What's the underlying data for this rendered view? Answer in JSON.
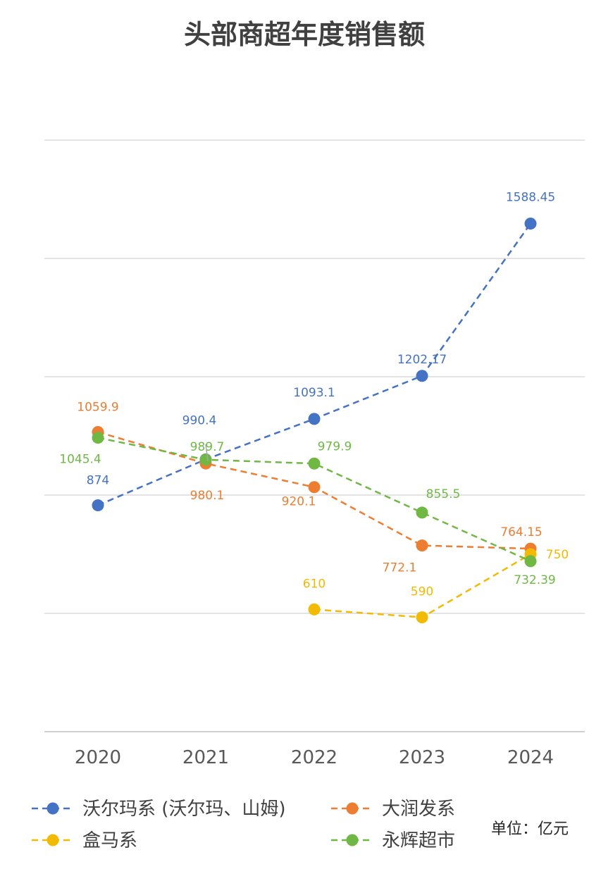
{
  "chart_data": {
    "type": "line",
    "title": "头部商超年度销售额",
    "categories": [
      "2020",
      "2021",
      "2022",
      "2023",
      "2024"
    ],
    "unit_label": "单位：亿元",
    "ylim": [
      300,
      1800
    ],
    "grid": true,
    "legend_position": "bottom",
    "series": [
      {
        "name": "沃尔玛系 (沃尔玛、山姆)",
        "color": "#4472C4",
        "values": [
          874,
          990.4,
          1093.1,
          1202.17,
          1588.45
        ],
        "labels": [
          "874",
          "990.4",
          "1093.1",
          "1202.17",
          "1588.45"
        ]
      },
      {
        "name": "大润发系",
        "color": "#ED7D31",
        "values": [
          1059.9,
          980.1,
          920.1,
          772.1,
          764.15
        ],
        "labels": [
          "1059.9",
          "980.1",
          "920.1",
          "772.1",
          "764.15"
        ]
      },
      {
        "name": "盒马系",
        "color": "#F2BA02",
        "values": [
          null,
          null,
          610,
          590,
          750
        ],
        "labels": [
          "",
          "",
          "610",
          "590",
          "750"
        ]
      },
      {
        "name": "永辉超市",
        "color": "#70B844",
        "values": [
          1045.4,
          989.7,
          979.9,
          855.5,
          732.39
        ],
        "labels": [
          "1045.4",
          "989.7",
          "979.9",
          "855.5",
          "732.39"
        ]
      }
    ]
  }
}
